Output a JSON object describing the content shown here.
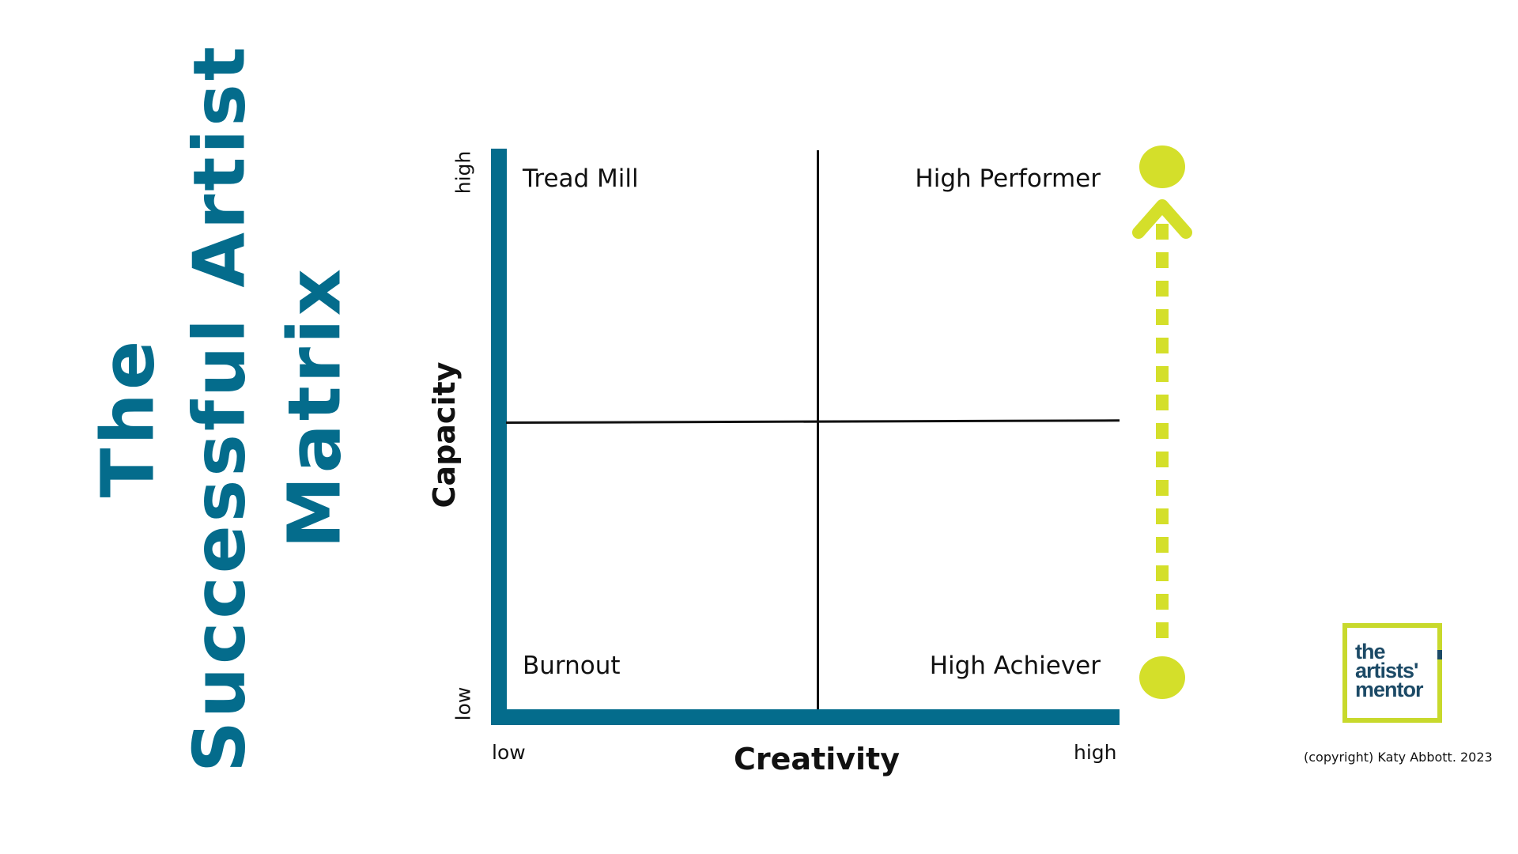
{
  "title": {
    "line1": "The",
    "line2": "Successful Artist",
    "line3": "Matrix"
  },
  "matrix": {
    "y_axis_title": "Capacity",
    "x_axis_title": "Creativity",
    "y_low": "low",
    "y_high": "high",
    "x_low": "low",
    "x_high": "high",
    "quadrants": {
      "top_left": "Tread Mill",
      "top_right": "High Performer",
      "bottom_left": "Burnout",
      "bottom_right": "High Achiever"
    }
  },
  "logo": {
    "line1": "the",
    "line2": "artists'",
    "line3": "mentor"
  },
  "copyright": "(copyright) Katy Abbott. 2023",
  "colors": {
    "title": "#046c8c",
    "axis": "#046c8c",
    "arrow": "#d4df2a",
    "logo_border": "#c8d92c",
    "logo_text": "#1c4a66"
  }
}
